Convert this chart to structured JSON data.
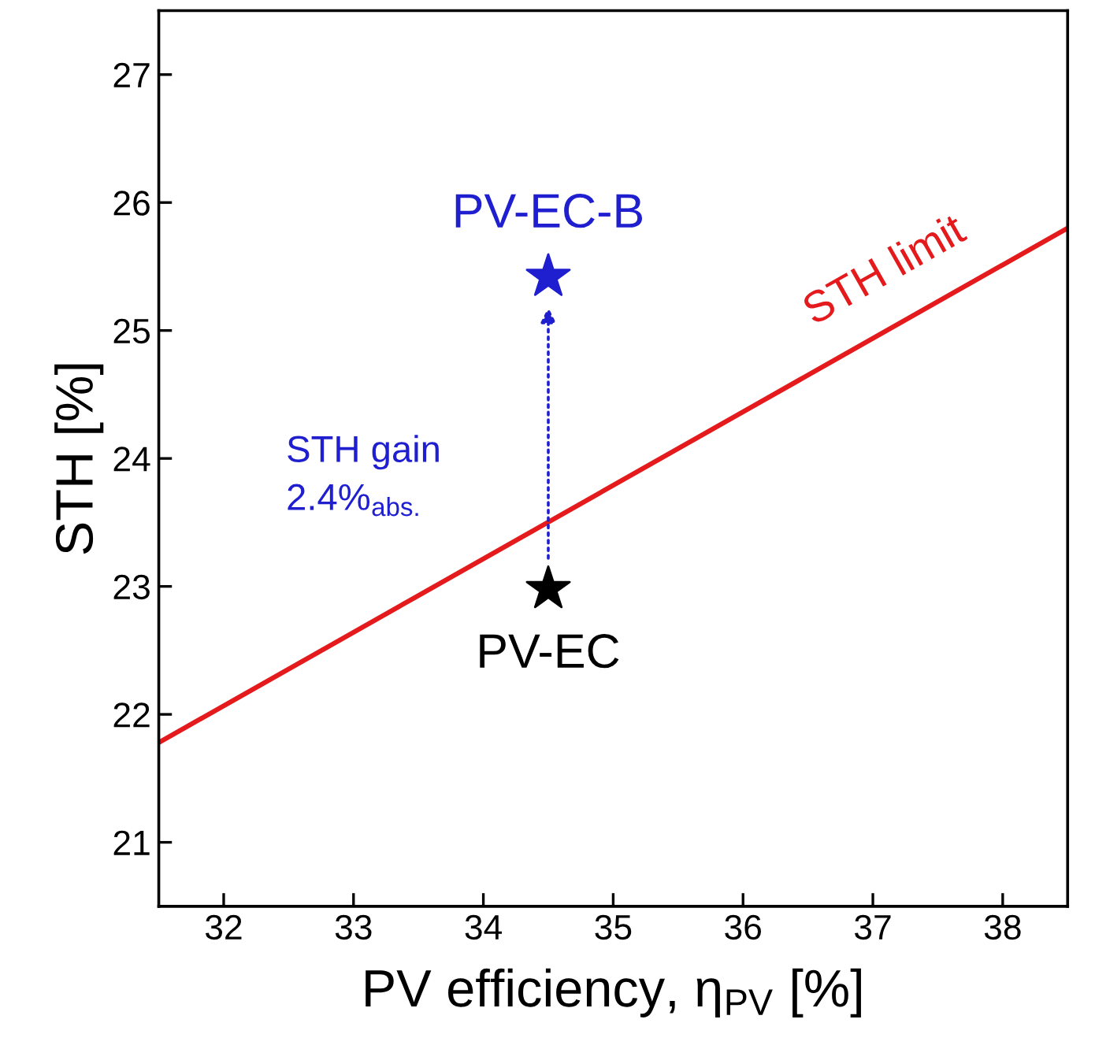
{
  "chart_data": {
    "type": "scatter",
    "xlabel": "PV efficiency, η$_{PV}$ [%]",
    "ylabel": "STH [%]",
    "xlim": [
      31.5,
      38.5
    ],
    "ylim": [
      20.5,
      27.5
    ],
    "xticks": [
      32,
      33,
      34,
      35,
      36,
      37,
      38
    ],
    "yticks": [
      21,
      22,
      23,
      24,
      25,
      26,
      27
    ],
    "grid": false,
    "legend": false,
    "series": [
      {
        "name": "STH limit",
        "type": "line",
        "marker": "none",
        "color": "#e41a1c",
        "x": [
          31.5,
          38.5
        ],
        "values": [
          21.78,
          25.8
        ]
      },
      {
        "name": "PV-EC",
        "marker": "star",
        "color": "#000000",
        "x": [
          34.5
        ],
        "values": [
          22.98
        ]
      },
      {
        "name": "PV-EC-B",
        "marker": "star",
        "color": "#1f1fd0",
        "x": [
          34.5
        ],
        "values": [
          25.42
        ]
      }
    ],
    "annotations": [
      "STH gain\n2.4%$_{abs.}$"
    ]
  }
}
